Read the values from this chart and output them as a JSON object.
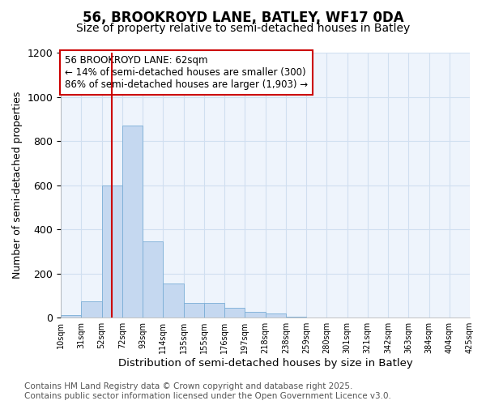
{
  "title": "56, BROOKROYD LANE, BATLEY, WF17 0DA",
  "subtitle": "Size of property relative to semi-detached houses in Batley",
  "xlabel": "Distribution of semi-detached houses by size in Batley",
  "ylabel": "Number of semi-detached properties",
  "bar_values": [
    10,
    75,
    600,
    870,
    345,
    155,
    65,
    65,
    45,
    25,
    20,
    5,
    0,
    0,
    0,
    0,
    0,
    0,
    0,
    0
  ],
  "bin_labels": [
    "10sqm",
    "31sqm",
    "52sqm",
    "72sqm",
    "93sqm",
    "114sqm",
    "135sqm",
    "155sqm",
    "176sqm",
    "197sqm",
    "218sqm",
    "238sqm",
    "259sqm",
    "280sqm",
    "301sqm",
    "321sqm",
    "342sqm",
    "363sqm",
    "384sqm",
    "404sqm",
    "425sqm"
  ],
  "bar_color": "#c5d8f0",
  "bar_edge_color": "#7aaed6",
  "vline_color": "#cc0000",
  "vline_x_index": 2.5,
  "annotation_title": "56 BROOKROYD LANE: 62sqm",
  "annotation_line1": "← 14% of semi-detached houses are smaller (300)",
  "annotation_line2": "86% of semi-detached houses are larger (1,903) →",
  "annotation_box_color": "white",
  "annotation_box_edge": "#cc0000",
  "ylim": [
    0,
    1200
  ],
  "yticks": [
    0,
    200,
    400,
    600,
    800,
    1000,
    1200
  ],
  "grid_color": "#d0dff0",
  "plot_bg_color": "#eef4fc",
  "fig_bg_color": "#ffffff",
  "footer_line1": "Contains HM Land Registry data © Crown copyright and database right 2025.",
  "footer_line2": "Contains public sector information licensed under the Open Government Licence v3.0.",
  "title_fontsize": 12,
  "subtitle_fontsize": 10,
  "annotation_fontsize": 8.5,
  "footer_fontsize": 7.5,
  "ylabel_fontsize": 9,
  "xlabel_fontsize": 9.5
}
